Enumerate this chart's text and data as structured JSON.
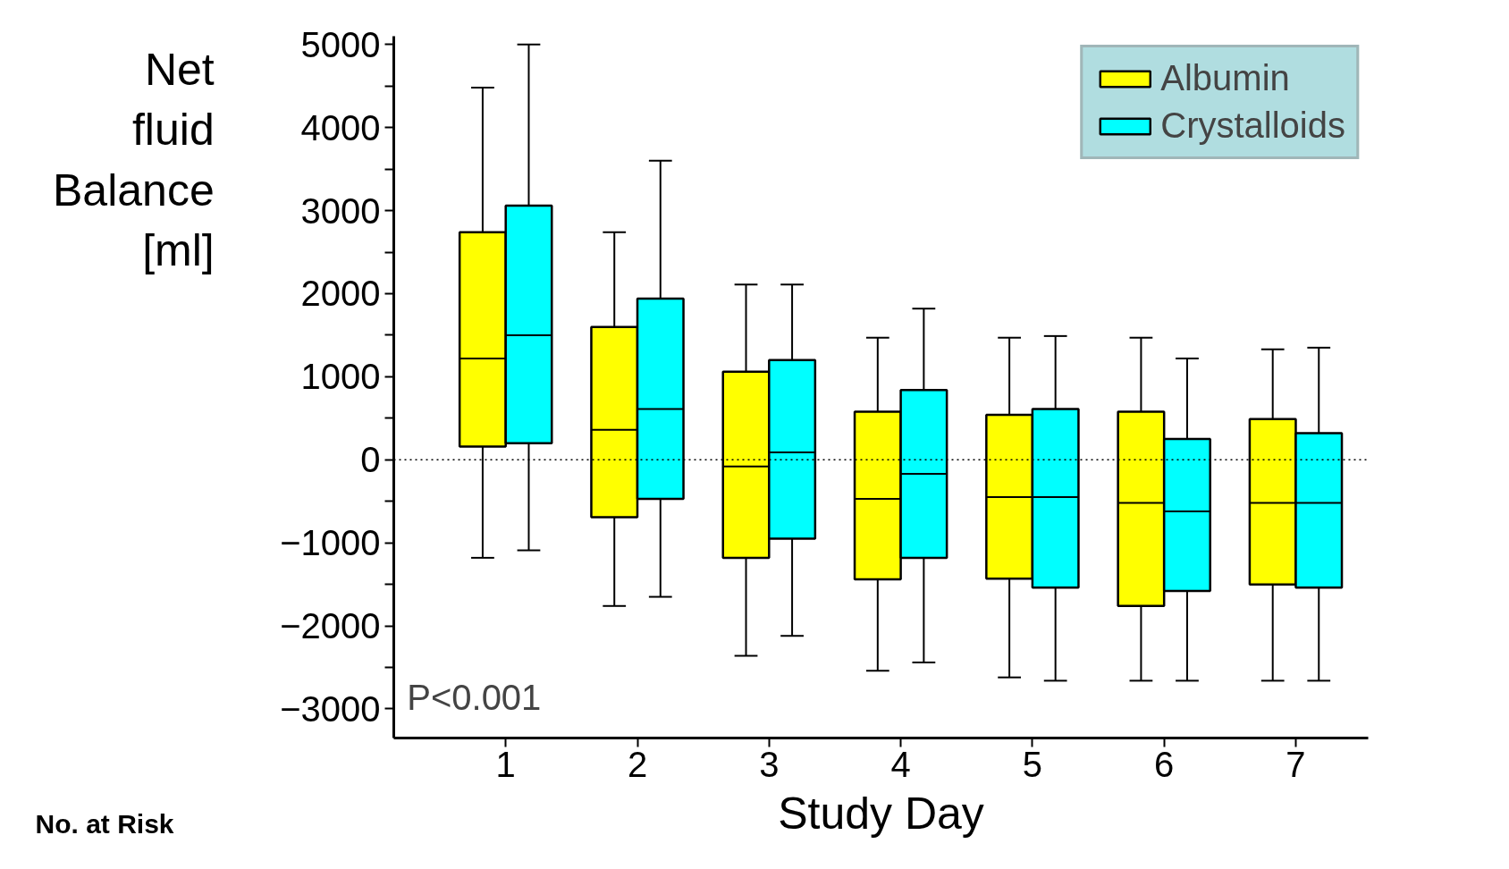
{
  "chart_data": {
    "type": "box",
    "ylabel": "Net fluid Balance [ml]",
    "xlabel": "Study Day",
    "categories": [
      "1",
      "2",
      "3",
      "4",
      "5",
      "6",
      "7"
    ],
    "ylim": [
      -3350,
      5100
    ],
    "yticks": [
      -3000,
      {
        "value": -2500,
        "label": null
      },
      -2000,
      {
        "value": -1500,
        "label": null
      },
      -1000,
      {
        "value": -500,
        "label": null
      },
      0,
      {
        "value": 500,
        "label": null
      },
      1000,
      {
        "value": 1500,
        "label": null
      },
      2000,
      {
        "value": 2500,
        "label": null
      },
      3000,
      {
        "value": 3500,
        "label": null
      },
      4000,
      {
        "value": 4500,
        "label": null
      },
      5000
    ],
    "grid": false,
    "legend": "top right",
    "ref_lines": [
      {
        "axis": "y",
        "value": 0,
        "line_style": "dotted",
        "color": "#000000"
      }
    ],
    "annotations": [
      "P<0.001",
      "No. at Risk"
    ],
    "series": [
      {
        "name": "Albumin",
        "color": "#ffff00",
        "boxes": [
          {
            "low": -1180,
            "q1": 160,
            "median": 1220,
            "q3": 2740,
            "high": 4480
          },
          {
            "low": -1760,
            "q1": -690,
            "median": 360,
            "q3": 1600,
            "high": 2740
          },
          {
            "low": -2360,
            "q1": -1180,
            "median": -80,
            "q3": 1060,
            "high": 2110
          },
          {
            "low": -2540,
            "q1": -1440,
            "median": -470,
            "q3": 580,
            "high": 1470
          },
          {
            "low": -2620,
            "q1": -1430,
            "median": -450,
            "q3": 540,
            "high": 1470
          },
          {
            "low": -2660,
            "q1": -1760,
            "median": -520,
            "q3": 580,
            "high": 1470
          },
          {
            "low": -2660,
            "q1": -1500,
            "median": -520,
            "q3": 490,
            "high": 1330
          }
        ]
      },
      {
        "name": "Crystalloids",
        "color": "#00ffff",
        "boxes": [
          {
            "low": -1090,
            "q1": 200,
            "median": 1500,
            "q3": 3060,
            "high": 5000
          },
          {
            "low": -1650,
            "q1": -470,
            "median": 610,
            "q3": 1940,
            "high": 3600
          },
          {
            "low": -2120,
            "q1": -950,
            "median": 90,
            "q3": 1200,
            "high": 2110
          },
          {
            "low": -2440,
            "q1": -1180,
            "median": -170,
            "q3": 840,
            "high": 1820
          },
          {
            "low": -2660,
            "q1": -1540,
            "median": -450,
            "q3": 610,
            "high": 1490
          },
          {
            "low": -2660,
            "q1": -1580,
            "median": -620,
            "q3": 250,
            "high": 1220
          },
          {
            "low": -2660,
            "q1": -1540,
            "median": -520,
            "q3": 320,
            "high": 1350
          }
        ]
      }
    ]
  }
}
